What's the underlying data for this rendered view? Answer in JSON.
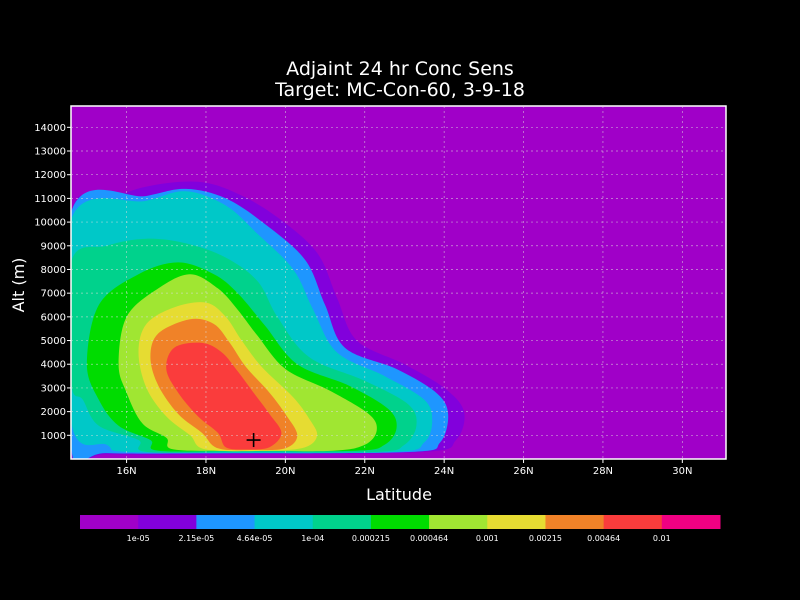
{
  "chart_data": {
    "type": "heatmap",
    "title_line1": "Adjaint 24 hr Conc Sens",
    "title_line2": "Target: MC-Con-60, 3-9-18",
    "xlabel": "Latitude",
    "ylabel": "Alt (m)",
    "xlim": [
      14.6,
      31.1
    ],
    "ylim": [
      0,
      14900
    ],
    "x_ticks": [
      "16N",
      "18N",
      "20N",
      "22N",
      "24N",
      "26N",
      "28N",
      "30N"
    ],
    "x_tick_values": [
      16,
      18,
      20,
      22,
      24,
      26,
      28,
      30
    ],
    "y_ticks": [
      1000,
      2000,
      3000,
      4000,
      5000,
      6000,
      7000,
      8000,
      9000,
      10000,
      11000,
      12000,
      13000,
      14000
    ],
    "grid": true,
    "marker": {
      "symbol": "+",
      "lat": 19.2,
      "alt": 800
    },
    "colorbar": {
      "colors": [
        "#a000c8",
        "#8200dc",
        "#1e96ff",
        "#00c8c8",
        "#00d28c",
        "#00dc00",
        "#a0e632",
        "#e6dc32",
        "#f08228",
        "#fa3c3c",
        "#f00082"
      ],
      "labels": [
        "1e-05",
        "2.15e-05",
        "4.64e-05",
        "1e-04",
        "0.000215",
        "0.000464",
        "0.001",
        "0.00215",
        "0.00464",
        "0.01"
      ]
    },
    "contours": [
      {
        "level": 1,
        "points": [
          [
            14.6,
            10200
          ],
          [
            15.5,
            10900
          ],
          [
            16.5,
            11500
          ],
          [
            17.8,
            11700
          ],
          [
            18.8,
            11200
          ],
          [
            19.8,
            10200
          ],
          [
            20.8,
            8700
          ],
          [
            21.3,
            6800
          ],
          [
            21.8,
            5000
          ],
          [
            23.0,
            4000
          ],
          [
            24.0,
            3000
          ],
          [
            24.5,
            2000
          ],
          [
            24.3,
            800
          ],
          [
            23.5,
            300
          ],
          [
            19.0,
            200
          ],
          [
            15.5,
            200
          ],
          [
            14.6,
            400
          ]
        ]
      },
      {
        "level": 2,
        "points": [
          [
            14.6,
            10400
          ],
          [
            16.5,
            11100
          ],
          [
            17.5,
            11400
          ],
          [
            18.5,
            11000
          ],
          [
            19.5,
            9900
          ],
          [
            20.5,
            8400
          ],
          [
            21.0,
            6500
          ],
          [
            21.5,
            4700
          ],
          [
            22.8,
            3800
          ],
          [
            23.8,
            2800
          ],
          [
            24.1,
            1900
          ],
          [
            23.9,
            700
          ],
          [
            23.2,
            300
          ],
          [
            19.0,
            250
          ],
          [
            15.5,
            250
          ],
          [
            14.6,
            500
          ]
        ]
      },
      {
        "level": 3,
        "points": [
          [
            14.6,
            10100
          ],
          [
            16.5,
            10900
          ],
          [
            17.5,
            11300
          ],
          [
            18.5,
            10700
          ],
          [
            19.3,
            9500
          ],
          [
            20.2,
            8000
          ],
          [
            20.7,
            6300
          ],
          [
            21.3,
            4500
          ],
          [
            22.5,
            3500
          ],
          [
            23.5,
            2500
          ],
          [
            23.7,
            1600
          ],
          [
            23.5,
            700
          ],
          [
            22.8,
            300
          ],
          [
            19.0,
            250
          ],
          [
            16.0,
            300
          ],
          [
            15.5,
            600
          ],
          [
            14.6,
            1600
          ]
        ]
      },
      {
        "level": 4,
        "points": [
          [
            14.6,
            8300
          ],
          [
            15.5,
            9000
          ],
          [
            16.5,
            9300
          ],
          [
            17.5,
            9100
          ],
          [
            18.5,
            8500
          ],
          [
            19.3,
            7500
          ],
          [
            19.8,
            6000
          ],
          [
            20.6,
            4300
          ],
          [
            22.0,
            3300
          ],
          [
            23.1,
            2300
          ],
          [
            23.3,
            1400
          ],
          [
            23.0,
            600
          ],
          [
            22.3,
            300
          ],
          [
            19.0,
            300
          ],
          [
            16.5,
            300
          ],
          [
            16.3,
            800
          ],
          [
            15.3,
            1400
          ],
          [
            14.9,
            2500
          ],
          [
            14.6,
            3300
          ]
        ]
      },
      {
        "level": 5,
        "points": [
          [
            15.3,
            6500
          ],
          [
            16.3,
            7800
          ],
          [
            17.3,
            8300
          ],
          [
            18.2,
            7800
          ],
          [
            18.8,
            7000
          ],
          [
            19.5,
            5600
          ],
          [
            20.3,
            4000
          ],
          [
            21.6,
            3100
          ],
          [
            22.6,
            2100
          ],
          [
            22.8,
            1300
          ],
          [
            22.5,
            600
          ],
          [
            21.8,
            350
          ],
          [
            19.0,
            350
          ],
          [
            16.8,
            350
          ],
          [
            16.6,
            800
          ],
          [
            15.8,
            1400
          ],
          [
            15.3,
            2500
          ],
          [
            15.0,
            4000
          ]
        ]
      },
      {
        "level": 6,
        "points": [
          [
            16.0,
            6000
          ],
          [
            16.8,
            7200
          ],
          [
            17.6,
            7800
          ],
          [
            18.3,
            7200
          ],
          [
            18.8,
            6300
          ],
          [
            19.3,
            5200
          ],
          [
            20.0,
            3800
          ],
          [
            21.1,
            2900
          ],
          [
            22.1,
            1900
          ],
          [
            22.3,
            1200
          ],
          [
            22.0,
            600
          ],
          [
            21.2,
            350
          ],
          [
            19.0,
            350
          ],
          [
            17.2,
            400
          ],
          [
            17.0,
            900
          ],
          [
            16.4,
            1500
          ],
          [
            16.0,
            2800
          ],
          [
            15.8,
            4000
          ]
        ]
      },
      {
        "level": 7,
        "points": [
          [
            16.5,
            5700
          ],
          [
            17.2,
            6400
          ],
          [
            18.0,
            6600
          ],
          [
            18.5,
            6000
          ],
          [
            18.9,
            5000
          ],
          [
            19.4,
            3900
          ],
          [
            20.2,
            2600
          ],
          [
            20.6,
            1700
          ],
          [
            20.8,
            1000
          ],
          [
            20.5,
            500
          ],
          [
            19.6,
            350
          ],
          [
            18.0,
            400
          ],
          [
            17.6,
            1000
          ],
          [
            17.0,
            1800
          ],
          [
            16.5,
            3000
          ],
          [
            16.3,
            4500
          ]
        ]
      },
      {
        "level": 8,
        "points": [
          [
            16.8,
            5300
          ],
          [
            17.6,
            5900
          ],
          [
            18.2,
            5700
          ],
          [
            18.6,
            4900
          ],
          [
            19.0,
            3900
          ],
          [
            19.6,
            2800
          ],
          [
            20.0,
            1900
          ],
          [
            20.3,
            1000
          ],
          [
            20.0,
            450
          ],
          [
            19.2,
            380
          ],
          [
            18.3,
            450
          ],
          [
            17.9,
            1100
          ],
          [
            17.3,
            1900
          ],
          [
            16.8,
            3100
          ],
          [
            16.6,
            4300
          ]
        ]
      },
      {
        "level": 9,
        "points": [
          [
            17.2,
            4700
          ],
          [
            17.9,
            4900
          ],
          [
            18.4,
            4500
          ],
          [
            18.8,
            3700
          ],
          [
            19.2,
            2800
          ],
          [
            19.6,
            1900
          ],
          [
            19.9,
            1100
          ],
          [
            19.6,
            500
          ],
          [
            19.0,
            400
          ],
          [
            18.5,
            500
          ],
          [
            18.3,
            1100
          ],
          [
            17.8,
            1800
          ],
          [
            17.3,
            2800
          ],
          [
            17.0,
            3800
          ]
        ]
      }
    ]
  }
}
